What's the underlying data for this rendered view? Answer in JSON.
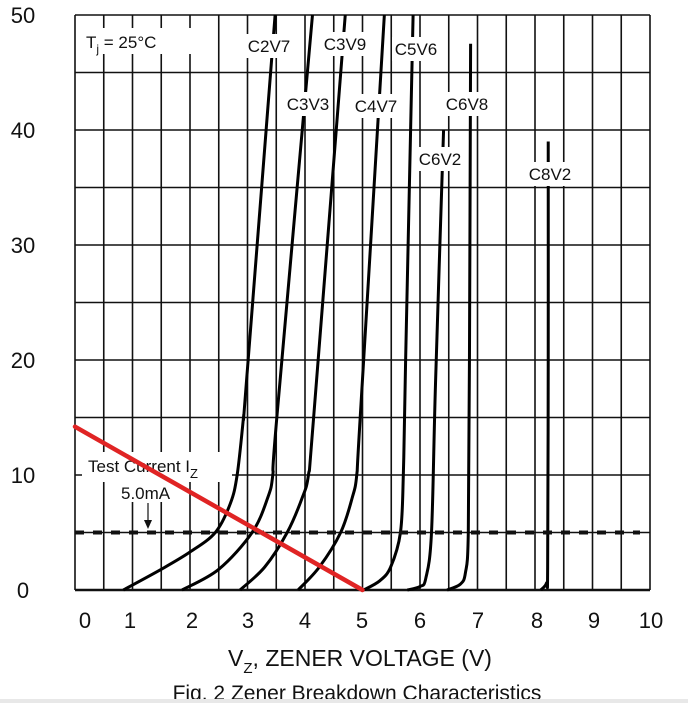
{
  "chart_data": {
    "type": "line",
    "title": "",
    "caption": "Fig. 2  Zener Breakdown Characteristics",
    "xlabel": "V",
    "xlabel_sub": "Z",
    "xlabel_rest": ", ZENER VOLTAGE (V)",
    "ylabel": "",
    "xlim": [
      0,
      10
    ],
    "ylim": [
      0,
      50
    ],
    "x_ticks": [
      "0",
      "1",
      "2",
      "3",
      "4",
      "5",
      "6",
      "7",
      "8",
      "9",
      "10"
    ],
    "y_ticks": [
      "0",
      "10",
      "20",
      "30",
      "40",
      "50"
    ],
    "grid": true,
    "annotation_temp": {
      "main": "T",
      "sub": "j",
      "rest": " = 25°C"
    },
    "test_current": {
      "label_main": "Test Current I",
      "label_sub": "Z",
      "value_label": "5.0mA",
      "value": 5.0
    },
    "load_line": {
      "color": "#e02424",
      "points": [
        [
          0,
          14.2
        ],
        [
          5,
          0
        ]
      ]
    },
    "series": [
      {
        "name": "C2V7",
        "points": [
          [
            0.84,
            0
          ],
          [
            1.5,
            1.8
          ],
          [
            2.0,
            3.3
          ],
          [
            2.44,
            5
          ],
          [
            2.7,
            7.5
          ],
          [
            2.82,
            10
          ],
          [
            2.93,
            15
          ],
          [
            2.98,
            18
          ],
          [
            3.48,
            50
          ]
        ]
      },
      {
        "name": "C3V3",
        "points": [
          [
            1.86,
            0
          ],
          [
            2.5,
            1.8
          ],
          [
            3.08,
            5
          ],
          [
            3.35,
            8
          ],
          [
            3.44,
            10
          ],
          [
            3.51,
            15
          ],
          [
            4.13,
            50
          ]
        ]
      },
      {
        "name": "C3V9",
        "points": [
          [
            2.87,
            0
          ],
          [
            3.3,
            2
          ],
          [
            3.69,
            5
          ],
          [
            3.95,
            8
          ],
          [
            4.06,
            10
          ],
          [
            4.15,
            15
          ],
          [
            4.7,
            50
          ]
        ]
      },
      {
        "name": "C4V7",
        "points": [
          [
            3.88,
            0
          ],
          [
            4.25,
            2
          ],
          [
            4.62,
            5
          ],
          [
            4.82,
            8
          ],
          [
            4.9,
            10
          ],
          [
            4.96,
            15
          ],
          [
            5.38,
            50
          ]
        ]
      },
      {
        "name": "C5V6",
        "points": [
          [
            5.02,
            0
          ],
          [
            5.3,
            0.8
          ],
          [
            5.49,
            2
          ],
          [
            5.66,
            5
          ],
          [
            5.71,
            10
          ],
          [
            5.75,
            20
          ],
          [
            5.88,
            50
          ]
        ]
      },
      {
        "name": "C6V2",
        "points": [
          [
            5.78,
            0
          ],
          [
            6.0,
            0.3
          ],
          [
            6.1,
            1
          ],
          [
            6.2,
            5
          ],
          [
            6.27,
            18
          ],
          [
            6.41,
            40
          ]
        ]
      },
      {
        "name": "C6V8",
        "points": [
          [
            6.47,
            0
          ],
          [
            6.7,
            0.5
          ],
          [
            6.79,
            1.5
          ],
          [
            6.84,
            5
          ],
          [
            6.86,
            20
          ],
          [
            6.88,
            47.5
          ]
        ]
      },
      {
        "name": "C8V2",
        "points": [
          [
            8.1,
            0
          ],
          [
            8.2,
            0.6
          ],
          [
            8.22,
            2
          ],
          [
            8.23,
            20
          ],
          [
            8.23,
            39
          ]
        ]
      }
    ]
  }
}
